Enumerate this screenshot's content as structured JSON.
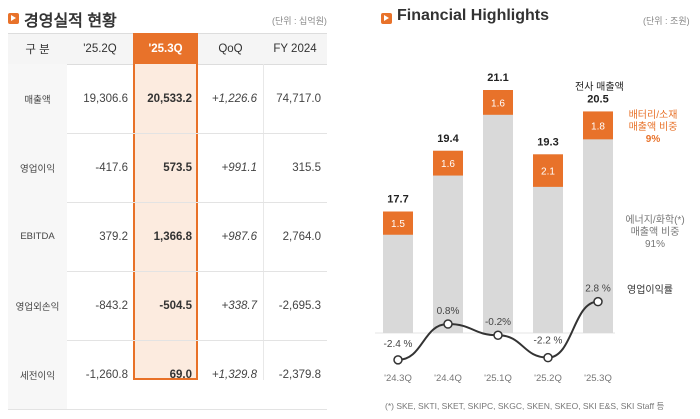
{
  "left_section": {
    "title": "경영실적 현황",
    "unit": "(단위 : 십억원)",
    "columns": [
      "구 분",
      "'25.2Q",
      "'25.3Q",
      "QoQ",
      "FY 2024"
    ],
    "highlight_column": "'25.3Q",
    "rows": [
      {
        "label": "매출액",
        "q2": "19,306.6",
        "q3": "20,533.2",
        "qoq": "+1,226.6",
        "fy": "74,717.0"
      },
      {
        "label": "영업이익",
        "q2": "-417.6",
        "q3": "573.5",
        "qoq": "+991.1",
        "fy": "315.5"
      },
      {
        "label": "EBITDA",
        "q2": "379.2",
        "q3": "1,366.8",
        "qoq": "+987.6",
        "fy": "2,764.0"
      },
      {
        "label": "영업외손익",
        "q2": "-843.2",
        "q3": "-504.5",
        "qoq": "+338.7",
        "fy": "-2,695.3"
      },
      {
        "label": "세전이익",
        "q2": "-1,260.8",
        "q3": "69.0",
        "qoq": "+1,329.8",
        "fy": "-2,379.8"
      }
    ]
  },
  "right_section": {
    "title": "Financial Highlights",
    "unit": "(단위 : 조원)",
    "legend_total": "전사 매출액",
    "legend_battery": [
      "배터리/소재",
      "매출액 비중",
      "9%"
    ],
    "legend_energy": [
      "에너지/화학(*)",
      "매출액 비중",
      "91%"
    ],
    "legend_margin": "영업이익률",
    "footnote": "(*) SKE, SKTI, SKET, SKIPC, SKGC, SKEN, SKEO, SKI E&S, SKI Staff 등"
  },
  "colors": {
    "accent": "#e8722a",
    "bar_gray": "#d9d9d9",
    "highlight_bg": "#fcebdf"
  },
  "chart_data": {
    "type": "bar",
    "title": "Financial Highlights",
    "categories": [
      "'24.3Q",
      "'24.4Q",
      "'25.1Q",
      "'25.2Q",
      "'25.3Q"
    ],
    "series": [
      {
        "name": "전사 매출액 (total)",
        "values": [
          17.7,
          19.4,
          21.1,
          19.3,
          20.5
        ],
        "labels": [
          "17.7",
          "19.4",
          "21.1",
          "19.3",
          "20.5"
        ]
      },
      {
        "name": "배터리/소재 매출액",
        "values": [
          1.5,
          1.6,
          1.6,
          2.1,
          1.8
        ],
        "labels": [
          "1.5",
          "1.6",
          "1.6",
          "2.1",
          "1.8"
        ]
      },
      {
        "name": "영업이익률 (%)",
        "type": "line",
        "values": [
          -2.4,
          0.8,
          -0.2,
          -2.2,
          2.8
        ],
        "labels": [
          "-2.4 %",
          "0.8%",
          "-0.2%",
          "-2.2 %",
          "2.8 %"
        ]
      }
    ],
    "ylabel": "조원",
    "legend": "right"
  }
}
